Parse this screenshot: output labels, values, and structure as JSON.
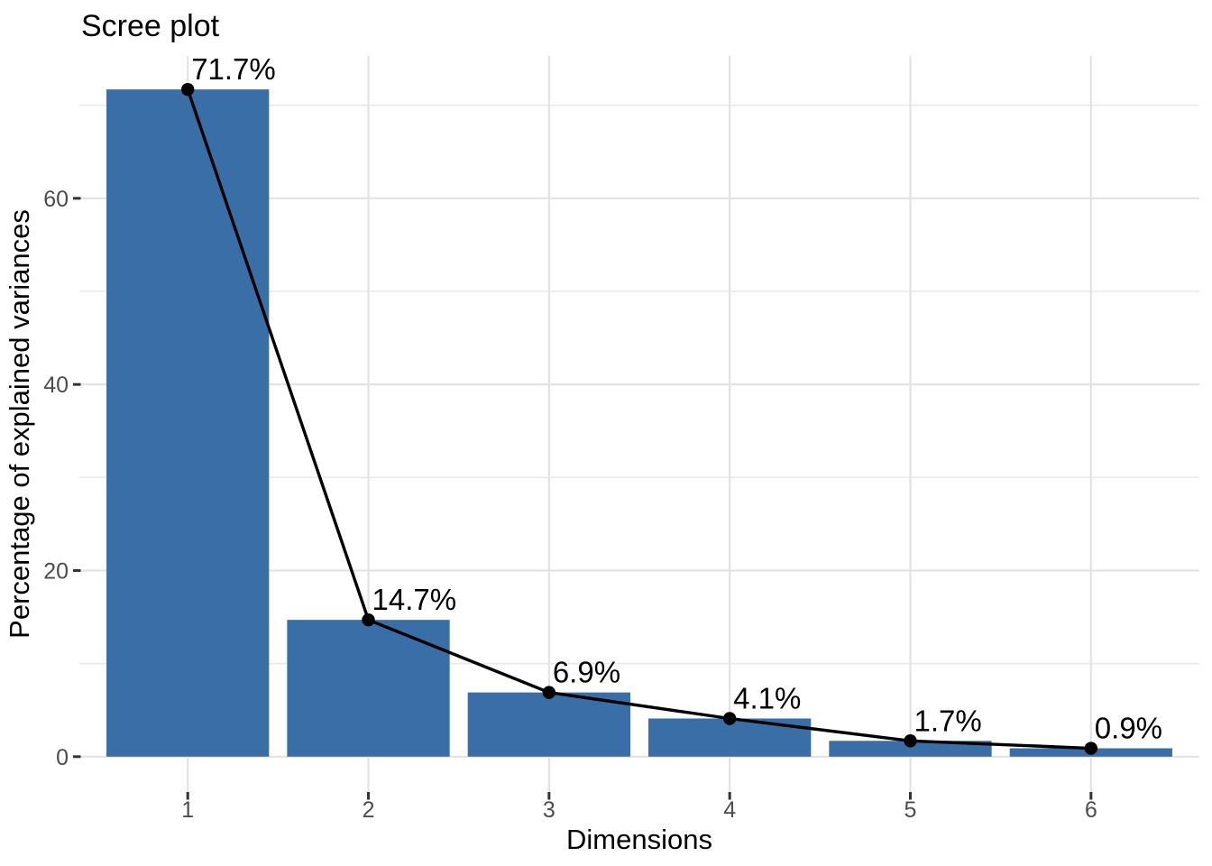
{
  "chart_data": {
    "type": "bar",
    "subtype": "scree-plot-with-line-overlay",
    "title": "Scree plot",
    "xlabel": "Dimensions",
    "ylabel": "Percentage of explained variances",
    "categories": [
      "1",
      "2",
      "3",
      "4",
      "5",
      "6"
    ],
    "values": [
      71.7,
      14.7,
      6.9,
      4.1,
      1.7,
      0.9
    ],
    "point_labels": [
      "71.7%",
      "14.7%",
      "6.9%",
      "4.1%",
      "1.7%",
      "0.9%"
    ],
    "series": [
      {
        "name": "explained-variance-bars",
        "type": "bar",
        "values": [
          71.7,
          14.7,
          6.9,
          4.1,
          1.7,
          0.9
        ]
      },
      {
        "name": "explained-variance-line",
        "type": "line",
        "values": [
          71.7,
          14.7,
          6.9,
          4.1,
          1.7,
          0.9
        ]
      }
    ],
    "y_major_ticks": [
      0,
      20,
      40,
      60
    ],
    "y_major_tick_labels": [
      "0",
      "20",
      "40",
      "60"
    ],
    "y_minor_gridlines": [
      10,
      30,
      50,
      70
    ],
    "ylim": [
      -3.8,
      75.3
    ],
    "xlim": [
      0.4,
      6.6
    ],
    "bar_width_units": 0.9,
    "grid": true,
    "legend_position": "none",
    "colors": {
      "bar_fill": "#3A6EA6",
      "line": "#000000",
      "point": "#000000",
      "grid_major": "#E3E3E3",
      "grid_minor": "#EAEAEA",
      "tick_mark": "#333333",
      "axis_text": "#4D4D4D",
      "title_text": "#000000",
      "label_text": "#000000",
      "background": "#FFFFFF"
    }
  }
}
